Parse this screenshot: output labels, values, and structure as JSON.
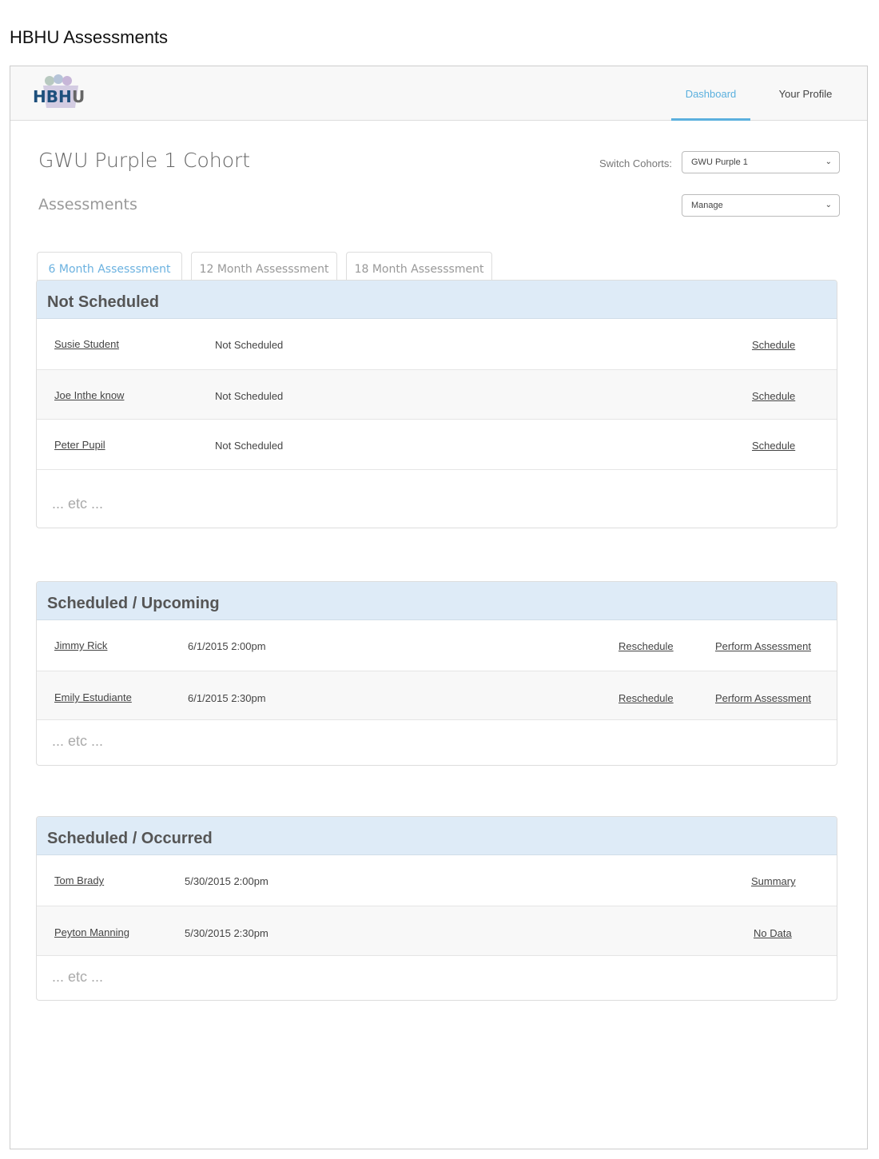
{
  "doc_title": "HBHU Assessments",
  "nav": {
    "logo_text": "HBHU",
    "links": [
      {
        "label": "Dashboard",
        "active": true
      },
      {
        "label": "Your Profile",
        "active": false
      }
    ]
  },
  "cohort_title": "GWU Purple 1 Cohort",
  "section_title": "Assessments",
  "switch_label": "Switch Cohorts:",
  "cohort_select": "GWU Purple 1",
  "manage_select": "Manage",
  "tabs": [
    {
      "label": "6 Month Assesssment",
      "active": true
    },
    {
      "label": "12 Month Assesssment"
    },
    {
      "label": "18 Month Assesssment"
    }
  ],
  "accent": "#5bb0de",
  "panels": {
    "not_scheduled": {
      "title": "Not Scheduled",
      "rows": [
        {
          "name": "Susie Student",
          "status": "Not Scheduled",
          "action": "Schedule"
        },
        {
          "name": "Joe Inthe know",
          "status": "Not Scheduled",
          "action": "Schedule"
        },
        {
          "name": "Peter Pupil",
          "status": "Not Scheduled",
          "action": "Schedule"
        }
      ],
      "etc": "... etc ..."
    },
    "upcoming": {
      "title": "Scheduled / Upcoming",
      "rows": [
        {
          "name": "Jimmy Rick",
          "datetime": "6/1/2015  2:00pm",
          "action1": "Reschedule",
          "action2": "Perform Assessment"
        },
        {
          "name": "Emily Estudiante",
          "datetime": "6/1/2015  2:30pm",
          "action1": "Reschedule",
          "action2": "Perform Assessment"
        }
      ],
      "etc": "... etc ..."
    },
    "occurred": {
      "title": "Scheduled / Occurred",
      "rows": [
        {
          "name": "Tom Brady",
          "datetime": "5/30/2015  2:00pm",
          "action": "Summary"
        },
        {
          "name": "Peyton Manning",
          "datetime": "5/30/2015  2:30pm",
          "action": "No Data"
        }
      ],
      "etc": "... etc ..."
    }
  }
}
